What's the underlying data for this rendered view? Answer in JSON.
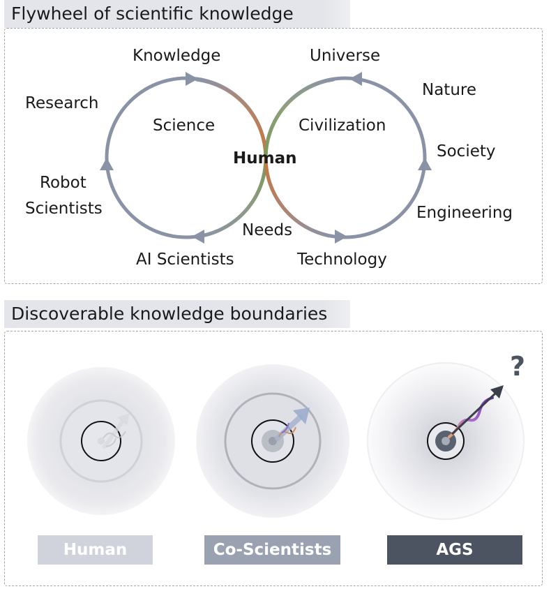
{
  "flywheel": {
    "title": "Flywheel of scientific knowledge",
    "center_label": "Human",
    "left_loop": {
      "inner_label": "Science",
      "labels": [
        "Knowledge",
        "Research",
        "Robot",
        "Scientists",
        "AI Scientists",
        "Needs"
      ]
    },
    "right_loop": {
      "inner_label": "Civilization",
      "labels": [
        "Universe",
        "Nature",
        "Society",
        "Engineering",
        "Technology"
      ]
    }
  },
  "boundaries": {
    "title": "Discoverable knowledge boundaries",
    "question_mark": "?",
    "items": [
      {
        "label": "Human",
        "color": "#d0d3dc"
      },
      {
        "label": "Co-Scientists",
        "color": "#9aa2b2"
      },
      {
        "label": "AGS",
        "color": "#4c5461"
      }
    ]
  },
  "colors": {
    "loop_stroke": "#8a93a6",
    "human_warm": "#c8763e",
    "human_green": "#7a9a58",
    "arrow_purple": "#6a2fb8"
  }
}
